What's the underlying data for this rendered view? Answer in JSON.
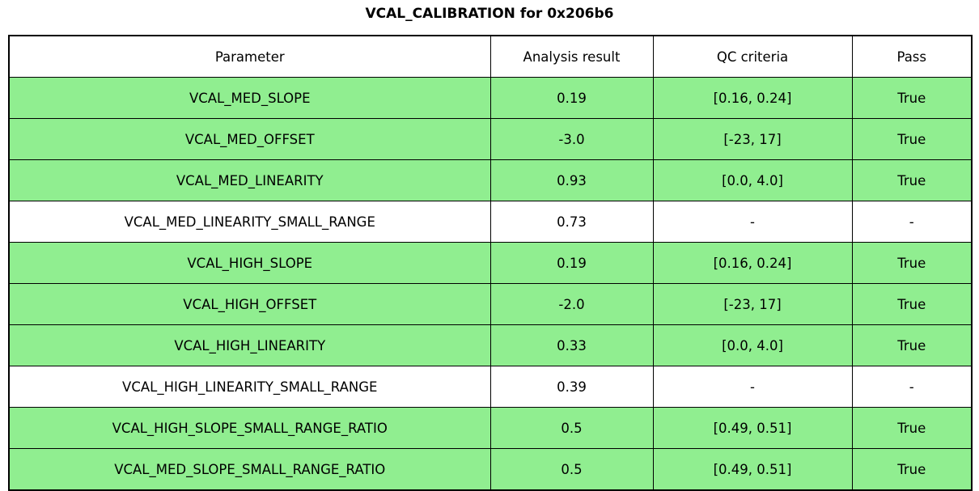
{
  "title": "VCAL_CALIBRATION for 0x206b6",
  "colors": {
    "pass_green": "#90EE90",
    "border": "#000000",
    "background": "#FFFFFF"
  },
  "chart_data": {
    "type": "table",
    "title": "VCAL_CALIBRATION for 0x206b6",
    "columns": [
      "Parameter",
      "Analysis result",
      "QC criteria",
      "Pass"
    ],
    "rows": [
      {
        "parameter": "VCAL_MED_SLOPE",
        "result": "0.19",
        "criteria": "[0.16, 0.24]",
        "pass": "True",
        "highlight": true
      },
      {
        "parameter": "VCAL_MED_OFFSET",
        "result": "-3.0",
        "criteria": "[-23, 17]",
        "pass": "True",
        "highlight": true
      },
      {
        "parameter": "VCAL_MED_LINEARITY",
        "result": "0.93",
        "criteria": "[0.0, 4.0]",
        "pass": "True",
        "highlight": true
      },
      {
        "parameter": "VCAL_MED_LINEARITY_SMALL_RANGE",
        "result": "0.73",
        "criteria": "-",
        "pass": "-",
        "highlight": false
      },
      {
        "parameter": "VCAL_HIGH_SLOPE",
        "result": "0.19",
        "criteria": "[0.16, 0.24]",
        "pass": "True",
        "highlight": true
      },
      {
        "parameter": "VCAL_HIGH_OFFSET",
        "result": "-2.0",
        "criteria": "[-23, 17]",
        "pass": "True",
        "highlight": true
      },
      {
        "parameter": "VCAL_HIGH_LINEARITY",
        "result": "0.33",
        "criteria": "[0.0, 4.0]",
        "pass": "True",
        "highlight": true
      },
      {
        "parameter": "VCAL_HIGH_LINEARITY_SMALL_RANGE",
        "result": "0.39",
        "criteria": "-",
        "pass": "-",
        "highlight": false
      },
      {
        "parameter": "VCAL_HIGH_SLOPE_SMALL_RANGE_RATIO",
        "result": "0.5",
        "criteria": "[0.49, 0.51]",
        "pass": "True",
        "highlight": true
      },
      {
        "parameter": "VCAL_MED_SLOPE_SMALL_RANGE_RATIO",
        "result": "0.5",
        "criteria": "[0.49, 0.51]",
        "pass": "True",
        "highlight": true
      }
    ]
  }
}
